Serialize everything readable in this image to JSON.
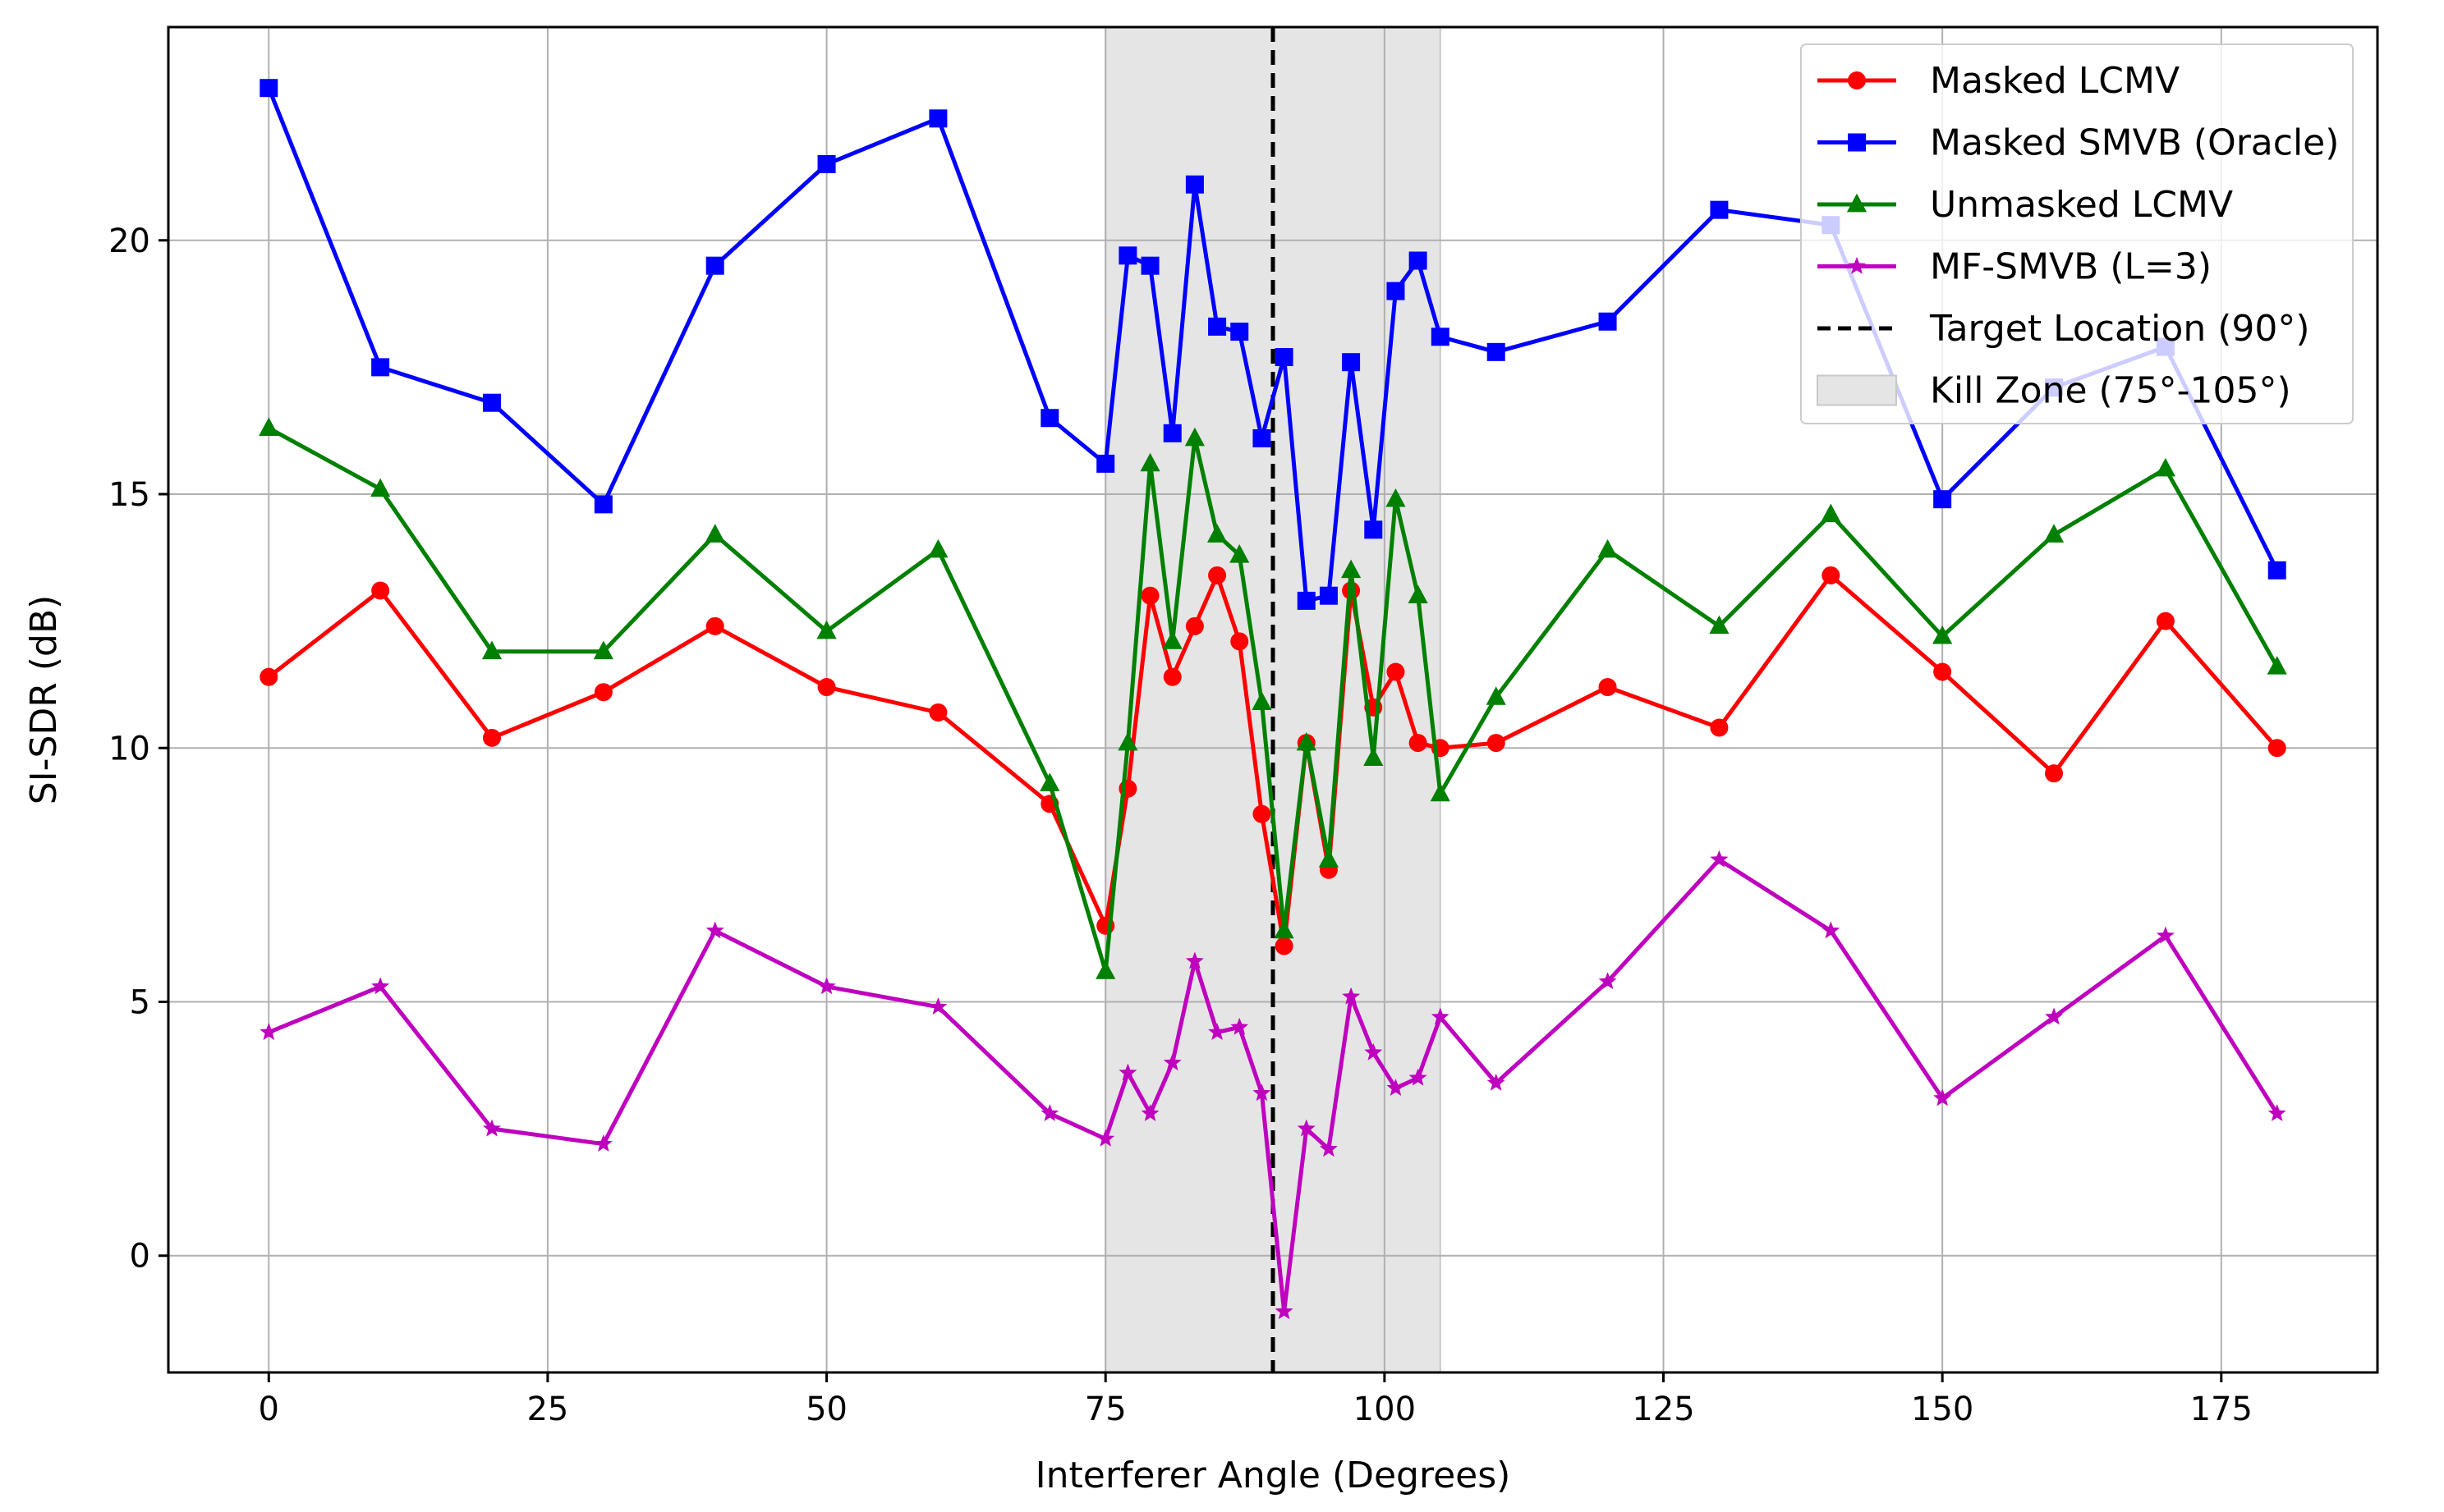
{
  "chart_data": {
    "type": "line",
    "title": "",
    "xlabel": "Interferer Angle (Degrees)",
    "ylabel": "SI-SDR (dB)",
    "xlim": [
      -9,
      189
    ],
    "ylim": [
      -2.3,
      24.2
    ],
    "xticks": [
      "0",
      "25",
      "50",
      "75",
      "100",
      "125",
      "150",
      "175"
    ],
    "yticks": [
      "0",
      "5",
      "10",
      "15",
      "20"
    ],
    "grid": true,
    "legend_position": "top-right",
    "x": [
      0,
      10,
      20,
      30,
      40,
      50,
      60,
      70,
      75,
      77,
      79,
      81,
      83,
      85,
      87,
      89,
      91,
      93,
      95,
      97,
      99,
      101,
      103,
      105,
      110,
      120,
      130,
      140,
      150,
      160,
      170,
      180
    ],
    "series": [
      {
        "name": "Masked LCMV",
        "color": "#ff0000",
        "marker": "circle",
        "values": [
          11.4,
          13.1,
          10.2,
          11.1,
          12.4,
          11.2,
          10.7,
          8.9,
          6.5,
          9.2,
          13.0,
          11.4,
          12.4,
          13.4,
          12.1,
          8.7,
          6.1,
          10.1,
          7.6,
          13.1,
          10.8,
          11.5,
          10.1,
          10.0,
          10.1,
          11.2,
          10.4,
          13.4,
          11.5,
          9.5,
          12.5,
          10.0
        ]
      },
      {
        "name": "Masked SMVB (Oracle)",
        "color": "#0000ff",
        "marker": "square",
        "values": [
          23.0,
          17.5,
          16.8,
          14.8,
          19.5,
          21.5,
          22.4,
          16.5,
          15.6,
          19.7,
          19.5,
          16.2,
          21.1,
          18.3,
          18.2,
          16.1,
          17.7,
          12.9,
          13.0,
          17.6,
          14.3,
          19.0,
          19.6,
          18.1,
          17.8,
          18.4,
          20.6,
          20.3,
          14.9,
          17.1,
          17.9,
          13.5
        ]
      },
      {
        "name": "Unmasked LCMV",
        "color": "#008000",
        "marker": "triangle",
        "values": [
          16.3,
          15.1,
          11.9,
          11.9,
          14.2,
          12.3,
          13.9,
          9.3,
          5.6,
          10.1,
          15.6,
          12.1,
          16.1,
          14.2,
          13.8,
          10.9,
          6.4,
          10.1,
          7.8,
          13.5,
          9.8,
          14.9,
          13.0,
          9.1,
          11.0,
          13.9,
          12.4,
          14.6,
          12.2,
          14.2,
          15.5,
          11.6
        ]
      },
      {
        "name": "MF-SMVB (L=3)",
        "color": "#bf00bf",
        "marker": "star",
        "values": [
          4.4,
          5.3,
          2.5,
          2.2,
          6.4,
          5.3,
          4.9,
          2.8,
          2.3,
          3.6,
          2.8,
          3.8,
          5.8,
          4.4,
          4.5,
          3.2,
          -1.1,
          2.5,
          2.1,
          5.1,
          4.0,
          3.3,
          3.5,
          4.7,
          3.4,
          5.4,
          7.8,
          6.4,
          3.1,
          4.7,
          6.3,
          2.8
        ]
      }
    ],
    "target": {
      "name": "Target Location (90°)",
      "x": 90,
      "color": "#000000",
      "style": "dashed"
    },
    "kill_zone": {
      "name": "Kill Zone (75°-105°)",
      "x_start": 75,
      "x_end": 105,
      "color": "#e5e5e5"
    }
  }
}
